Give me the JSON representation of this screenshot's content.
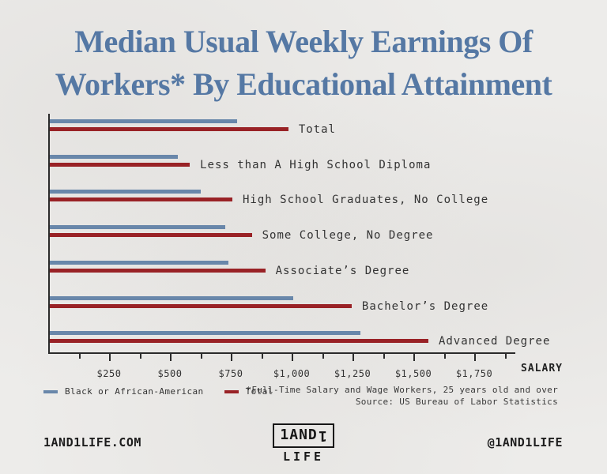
{
  "title": {
    "lines": [
      "Median Usual Weekly Earnings Of",
      "Workers* By Educational Attainment"
    ]
  },
  "chart_data": {
    "type": "bar",
    "orientation": "horizontal",
    "title": "Median Usual Weekly Earnings Of Workers* By Educational Attainment",
    "categories": [
      "Total",
      "Less than A High School Diploma",
      "High School Graduates, No College",
      "Some College, No Degree",
      "Associate’s Degree",
      "Bachelor’s Degree",
      "Advanced Degree"
    ],
    "series": [
      {
        "name": "Black or African-American",
        "color": "#6987aa",
        "values": [
          770,
          525,
          620,
          720,
          735,
          1000,
          1275
        ]
      },
      {
        "name": "Total",
        "color": "#992226",
        "values": [
          980,
          575,
          750,
          830,
          885,
          1240,
          1555
        ]
      }
    ],
    "xlabel": "SALARY",
    "xlim": [
      0,
      1875
    ],
    "xticks": {
      "major_step": 250,
      "minor_step": 125,
      "labels": [
        "$250",
        "$500",
        "$750",
        "$1,000",
        "$1,250",
        "$1,500",
        "$1,750"
      ]
    },
    "grid": false,
    "legend_position": "bottom-left"
  },
  "legend": {
    "items": [
      {
        "label": "Black or African-American",
        "color": "#6987aa"
      },
      {
        "label": "Total",
        "color": "#992226"
      }
    ]
  },
  "footnote": {
    "line1": "*Full-Time Salary and Wage Workers, 25 years old and over",
    "line2": "Source: US Bureau of Labor Statistics"
  },
  "footer": {
    "website": "1AND1LIFE.COM",
    "logo_top": "1AND1",
    "logo_bottom": "LIFE",
    "social_handle": "@1AND1LIFE"
  },
  "colors": {
    "background": "#edecea",
    "title": "#5578a4",
    "bar_black_series": "#6987aa",
    "bar_total_series": "#992226",
    "axis": "#2b2b2b",
    "text": "#333333"
  }
}
